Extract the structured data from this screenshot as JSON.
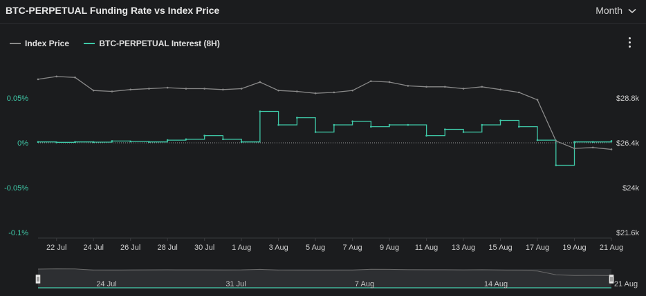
{
  "header": {
    "title": "BTC-PERPETUAL Funding Rate vs Index Price",
    "period": "Month"
  },
  "colors": {
    "index_price": "#8a8a8a",
    "interest": "#3fc9a8",
    "left_axis": "#3fc9a8",
    "text": "#d6d6d6"
  },
  "icons": [
    "chevron-down-icon",
    "more-vertical-icon",
    "navigator-handle-icon"
  ],
  "chart_data": {
    "type": "line",
    "title": "BTC-PERPETUAL Funding Rate vs Index Price",
    "legend": [
      "Index Price",
      "BTC-PERPETUAL Interest (8H)"
    ],
    "legend_position": "top-left",
    "x_range": [
      "2023-07-21",
      "2023-08-21"
    ],
    "x_ticks": [
      "22 Jul",
      "24 Jul",
      "26 Jul",
      "28 Jul",
      "30 Jul",
      "1 Aug",
      "3 Aug",
      "5 Aug",
      "7 Aug",
      "9 Aug",
      "11 Aug",
      "13 Aug",
      "15 Aug",
      "17 Aug",
      "19 Aug",
      "21 Aug"
    ],
    "y_left": {
      "ticks": [
        "0.05%",
        "0%",
        "-0.05%",
        "-0.1%"
      ],
      "range": [
        -0.1,
        0.05
      ],
      "unit": "%"
    },
    "y_right": {
      "ticks": [
        "$28.8k",
        "$26.4k",
        "$24k",
        "$21.6k"
      ],
      "range": [
        21600,
        28800
      ]
    },
    "series": [
      {
        "name": "Index Price",
        "x": [
          "2023-07-21",
          "2023-07-22",
          "2023-07-23",
          "2023-07-24",
          "2023-07-25",
          "2023-07-26",
          "2023-07-27",
          "2023-07-28",
          "2023-07-29",
          "2023-07-30",
          "2023-07-31",
          "2023-08-01",
          "2023-08-02",
          "2023-08-03",
          "2023-08-04",
          "2023-08-05",
          "2023-08-06",
          "2023-08-07",
          "2023-08-08",
          "2023-08-09",
          "2023-08-10",
          "2023-08-11",
          "2023-08-12",
          "2023-08-13",
          "2023-08-14",
          "2023-08-15",
          "2023-08-16",
          "2023-08-17",
          "2023-08-18",
          "2023-08-19",
          "2023-08-20",
          "2023-08-21"
        ],
        "values": [
          29800,
          29950,
          29900,
          29200,
          29150,
          29250,
          29300,
          29350,
          29300,
          29300,
          29250,
          29300,
          29650,
          29200,
          29150,
          29050,
          29100,
          29200,
          29700,
          29650,
          29450,
          29400,
          29400,
          29300,
          29400,
          29250,
          29100,
          28700,
          26500,
          26100,
          26150,
          26050
        ]
      },
      {
        "name": "BTC-PERPETUAL Interest (8H)",
        "x": [
          "2023-07-21",
          "2023-07-22",
          "2023-07-23",
          "2023-07-24",
          "2023-07-25",
          "2023-07-26",
          "2023-07-27",
          "2023-07-28",
          "2023-07-29",
          "2023-07-30",
          "2023-07-31",
          "2023-08-01",
          "2023-08-02",
          "2023-08-03",
          "2023-08-04",
          "2023-08-05",
          "2023-08-06",
          "2023-08-07",
          "2023-08-08",
          "2023-08-09",
          "2023-08-10",
          "2023-08-11",
          "2023-08-12",
          "2023-08-13",
          "2023-08-14",
          "2023-08-15",
          "2023-08-16",
          "2023-08-17",
          "2023-08-18",
          "2023-08-19",
          "2023-08-20",
          "2023-08-21"
        ],
        "values": [
          0.001,
          0.0005,
          0.001,
          0.0008,
          0.002,
          0.0015,
          0.001,
          0.003,
          0.004,
          0.008,
          0.004,
          0.001,
          0.035,
          0.02,
          0.028,
          0.012,
          0.02,
          0.024,
          0.018,
          0.02,
          0.02,
          0.008,
          0.015,
          0.012,
          0.02,
          0.025,
          0.018,
          0.003,
          -0.025,
          0.001,
          0.001,
          0.002
        ]
      }
    ]
  },
  "navigator": {
    "ticks": [
      "24 Jul",
      "31 Jul",
      "7 Aug",
      "14 Aug",
      "21 Aug"
    ]
  }
}
